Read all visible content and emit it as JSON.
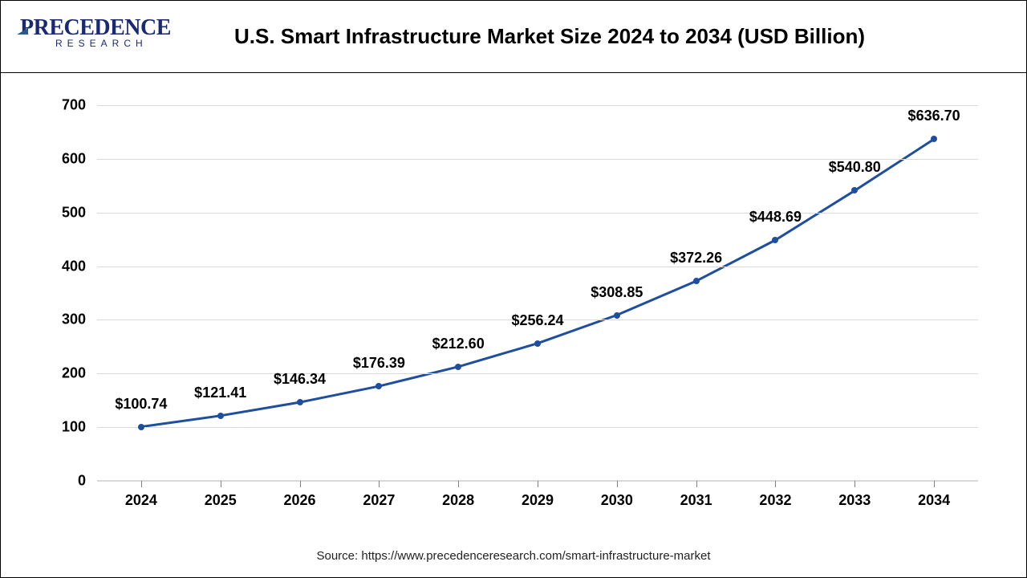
{
  "brand": {
    "name_part1": "P",
    "name_part2": "RECEDENCE",
    "subtitle": "RESEARCH",
    "color": "#1a2a6c"
  },
  "chart": {
    "type": "line",
    "title": "U.S. Smart Infrastructure Market Size 2024 to 2034 (USD Billion)",
    "title_fontsize": 26,
    "title_fontweight": 700,
    "x_categories": [
      "2024",
      "2025",
      "2026",
      "2027",
      "2028",
      "2029",
      "2030",
      "2031",
      "2032",
      "2033",
      "2034"
    ],
    "values": [
      100.74,
      121.41,
      146.34,
      176.39,
      212.6,
      256.24,
      308.85,
      372.26,
      448.69,
      540.8,
      636.7
    ],
    "data_labels": [
      "$100.74",
      "$121.41",
      "$146.34",
      "$176.39",
      "$212.60",
      "$256.24",
      "$308.85",
      "$372.26",
      "$448.69",
      "$540.80",
      "$636.70"
    ],
    "ymin": 0,
    "ymax": 700,
    "ytick_step": 100,
    "yticks": [
      0,
      100,
      200,
      300,
      400,
      500,
      600,
      700
    ],
    "line_color": "#1f4e9c",
    "line_width": 3,
    "marker_color": "#1f4e9c",
    "marker_size": 8,
    "marker_style": "circle",
    "background_color": "#ffffff",
    "grid_color": "#d9d9d9",
    "axis_label_fontsize": 18,
    "axis_label_fontweight": 700,
    "data_label_fontsize": 18,
    "data_label_fontweight": 700
  },
  "source_text": "Source: https://www.precedenceresearch.com/smart-infrastructure-market"
}
